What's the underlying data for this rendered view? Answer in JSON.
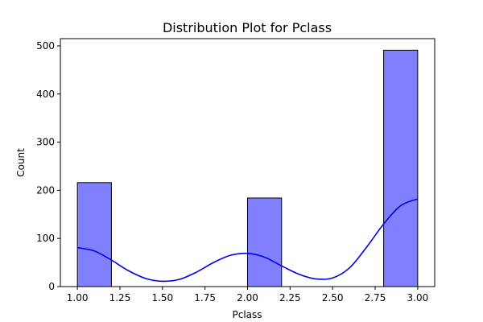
{
  "chart_data": {
    "type": "bar",
    "title": "Distribution Plot for Pclass",
    "xlabel": "Pclass",
    "ylabel": "Count",
    "xlim": [
      0.9,
      3.1
    ],
    "ylim": [
      0,
      515
    ],
    "xticks": [
      1.0,
      1.25,
      1.5,
      1.75,
      2.0,
      2.25,
      2.5,
      2.75,
      3.0
    ],
    "xtick_labels": [
      "1.00",
      "1.25",
      "1.50",
      "1.75",
      "2.00",
      "2.25",
      "2.50",
      "2.75",
      "3.00"
    ],
    "yticks": [
      0,
      100,
      200,
      300,
      400,
      500
    ],
    "ytick_labels": [
      "0",
      "100",
      "200",
      "300",
      "400",
      "500"
    ],
    "bins": [
      {
        "x0": 1.0,
        "x1": 1.2,
        "value": 216
      },
      {
        "x0": 2.0,
        "x1": 2.2,
        "value": 184
      },
      {
        "x0": 2.8,
        "x1": 3.0,
        "value": 491
      }
    ],
    "kde": {
      "x": [
        1.0,
        1.1,
        1.2,
        1.3,
        1.4,
        1.5,
        1.6,
        1.7,
        1.8,
        1.9,
        2.0,
        2.1,
        2.2,
        2.3,
        2.4,
        2.5,
        2.6,
        2.7,
        2.8,
        2.9,
        3.0
      ],
      "y": [
        81,
        74,
        55,
        33,
        17,
        11,
        15,
        30,
        50,
        65,
        69,
        61,
        43,
        26,
        16,
        18,
        39,
        82,
        130,
        168,
        182
      ]
    },
    "bar_fill": "#8080ff",
    "bar_edge": "#000000",
    "kde_color": "#0000ee",
    "grid": false,
    "legend": "none"
  }
}
